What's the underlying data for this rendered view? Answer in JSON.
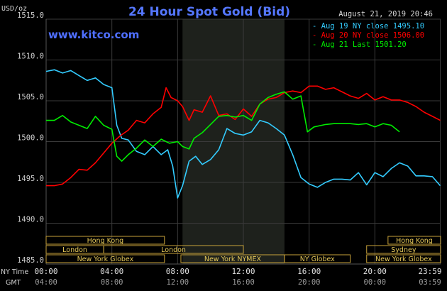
{
  "header": {
    "currency": "USD/oz",
    "title": "24 Hour Spot Gold (Bid)",
    "timestamp": "August 21, 2019 20:46",
    "watermark": "www.kitco.com"
  },
  "legend": [
    {
      "label": "Aug 19 NY close 1495.10",
      "color": "#33ccff"
    },
    {
      "label": "Aug 20 NY close 1506.00",
      "color": "#ff0000"
    },
    {
      "label": "Aug 21 Last 1501.20",
      "color": "#00ee00"
    }
  ],
  "sessions": [
    {
      "label": "Hong Kong",
      "row": 0,
      "start": 0,
      "end": 7.2
    },
    {
      "label": "Hong Kong",
      "row": 0,
      "start": 20.8,
      "end": 24
    },
    {
      "label": "London",
      "row": 1,
      "start": 0,
      "end": 3.5
    },
    {
      "label": "London",
      "row": 1,
      "start": 3.5,
      "end": 12
    },
    {
      "label": "Sydney",
      "row": 1,
      "start": 19.5,
      "end": 24
    },
    {
      "label": "New York Globex",
      "row": 2,
      "start": 0,
      "end": 7.2
    },
    {
      "label": "New York NYMEX",
      "row": 2,
      "start": 8.2,
      "end": 14.5
    },
    {
      "label": "NY Globex",
      "row": 2,
      "start": 14.5,
      "end": 18.5
    },
    {
      "label": "New York Globex",
      "row": 2,
      "start": 19.5,
      "end": 24
    }
  ],
  "axis_labels": {
    "ny_time": "NY Time",
    "gmt": "GMT"
  },
  "chart_data": {
    "type": "line",
    "title": "24 Hour Spot Gold (Bid)",
    "ylabel": "USD/oz",
    "xlim": [
      0,
      24
    ],
    "ylim": [
      1485,
      1515
    ],
    "y_ticks": [
      "1515.0",
      "1510.0",
      "1505.0",
      "1500.0",
      "1495.0",
      "1490.0",
      "1485.0"
    ],
    "y_tick_values": [
      1515,
      1510,
      1505,
      1500,
      1495,
      1490,
      1485
    ],
    "x_ticks_ny": [
      "00:00",
      "04:00",
      "08:00",
      "12:00",
      "16:00",
      "20:00",
      "23:59"
    ],
    "x_ticks_gmt": [
      "04:00",
      "08:00",
      "12:00",
      "16:00",
      "20:00",
      "00:00",
      "03:59"
    ],
    "x_tick_hours": [
      0,
      4,
      8,
      12,
      16,
      20,
      23.98
    ],
    "shaded_range": [
      8.3,
      14.5
    ],
    "series": [
      {
        "name": "Aug 19 NY close 1495.10",
        "color": "#33ccff",
        "points": [
          [
            0,
            1508.6
          ],
          [
            0.5,
            1508.8
          ],
          [
            1,
            1508.4
          ],
          [
            1.5,
            1508.7
          ],
          [
            2,
            1508.1
          ],
          [
            2.5,
            1507.5
          ],
          [
            3,
            1507.8
          ],
          [
            3.5,
            1507.0
          ],
          [
            4,
            1506.6
          ],
          [
            4.3,
            1502.0
          ],
          [
            4.6,
            1500.4
          ],
          [
            5,
            1500.2
          ],
          [
            5.5,
            1498.8
          ],
          [
            6,
            1498.4
          ],
          [
            6.5,
            1499.4
          ],
          [
            7,
            1498.4
          ],
          [
            7.4,
            1499.0
          ],
          [
            7.7,
            1497.0
          ],
          [
            8,
            1493.1
          ],
          [
            8.3,
            1494.6
          ],
          [
            8.7,
            1497.6
          ],
          [
            9.1,
            1498.2
          ],
          [
            9.5,
            1497.2
          ],
          [
            10,
            1497.8
          ],
          [
            10.5,
            1499.0
          ],
          [
            11,
            1501.6
          ],
          [
            11.5,
            1501.0
          ],
          [
            12,
            1500.8
          ],
          [
            12.5,
            1501.2
          ],
          [
            13,
            1502.6
          ],
          [
            13.5,
            1502.3
          ],
          [
            14,
            1501.6
          ],
          [
            14.5,
            1500.8
          ],
          [
            15,
            1498.4
          ],
          [
            15.5,
            1495.6
          ],
          [
            16,
            1494.8
          ],
          [
            16.5,
            1494.4
          ],
          [
            17,
            1495.0
          ],
          [
            17.5,
            1495.4
          ],
          [
            18,
            1495.4
          ],
          [
            18.5,
            1495.3
          ],
          [
            19,
            1496.2
          ],
          [
            19.5,
            1494.7
          ],
          [
            20,
            1496.2
          ],
          [
            20.5,
            1495.7
          ],
          [
            21,
            1496.7
          ],
          [
            21.5,
            1497.4
          ],
          [
            22,
            1497.0
          ],
          [
            22.5,
            1495.8
          ],
          [
            23,
            1495.8
          ],
          [
            23.5,
            1495.7
          ],
          [
            23.98,
            1494.6
          ]
        ]
      },
      {
        "name": "Aug 20 NY close 1506.00",
        "color": "#ff0000",
        "points": [
          [
            0,
            1494.6
          ],
          [
            0.5,
            1494.6
          ],
          [
            1,
            1494.8
          ],
          [
            1.5,
            1495.6
          ],
          [
            2,
            1496.6
          ],
          [
            2.5,
            1496.5
          ],
          [
            3,
            1497.4
          ],
          [
            3.5,
            1498.6
          ],
          [
            4,
            1499.8
          ],
          [
            4.5,
            1500.7
          ],
          [
            5,
            1501.4
          ],
          [
            5.5,
            1502.6
          ],
          [
            6,
            1502.3
          ],
          [
            6.5,
            1503.4
          ],
          [
            7,
            1504.2
          ],
          [
            7.3,
            1506.6
          ],
          [
            7.6,
            1505.4
          ],
          [
            8,
            1505.0
          ],
          [
            8.3,
            1504.3
          ],
          [
            8.7,
            1502.6
          ],
          [
            9,
            1503.9
          ],
          [
            9.5,
            1503.6
          ],
          [
            10,
            1505.6
          ],
          [
            10.5,
            1503.2
          ],
          [
            11,
            1503.4
          ],
          [
            11.5,
            1502.7
          ],
          [
            12,
            1504.0
          ],
          [
            12.5,
            1503.1
          ],
          [
            13,
            1504.6
          ],
          [
            13.5,
            1505.2
          ],
          [
            14,
            1505.4
          ],
          [
            14.5,
            1506.0
          ],
          [
            15,
            1506.2
          ],
          [
            15.5,
            1506.0
          ],
          [
            16,
            1506.8
          ],
          [
            16.5,
            1506.8
          ],
          [
            17,
            1506.4
          ],
          [
            17.5,
            1506.6
          ],
          [
            18,
            1506.1
          ],
          [
            18.5,
            1505.6
          ],
          [
            19,
            1505.3
          ],
          [
            19.5,
            1505.9
          ],
          [
            20,
            1505.1
          ],
          [
            20.5,
            1505.5
          ],
          [
            21,
            1505.1
          ],
          [
            21.5,
            1505.1
          ],
          [
            22,
            1504.8
          ],
          [
            22.5,
            1504.3
          ],
          [
            23,
            1503.6
          ],
          [
            23.5,
            1503.1
          ],
          [
            23.98,
            1502.6
          ]
        ]
      },
      {
        "name": "Aug 21 Last 1501.20",
        "color": "#00ee00",
        "points": [
          [
            0,
            1502.6
          ],
          [
            0.5,
            1502.6
          ],
          [
            1,
            1503.2
          ],
          [
            1.5,
            1502.4
          ],
          [
            2,
            1502.0
          ],
          [
            2.5,
            1501.6
          ],
          [
            3,
            1503.1
          ],
          [
            3.5,
            1502.0
          ],
          [
            4,
            1501.5
          ],
          [
            4.3,
            1498.2
          ],
          [
            4.6,
            1497.6
          ],
          [
            5,
            1498.4
          ],
          [
            5.5,
            1499.2
          ],
          [
            6,
            1500.2
          ],
          [
            6.5,
            1499.4
          ],
          [
            7,
            1500.3
          ],
          [
            7.5,
            1499.8
          ],
          [
            8,
            1500.0
          ],
          [
            8.3,
            1499.4
          ],
          [
            8.7,
            1499.1
          ],
          [
            9,
            1500.4
          ],
          [
            9.5,
            1501.1
          ],
          [
            10,
            1502.1
          ],
          [
            10.5,
            1503.1
          ],
          [
            11,
            1503.2
          ],
          [
            11.5,
            1503.0
          ],
          [
            12,
            1503.2
          ],
          [
            12.5,
            1502.6
          ],
          [
            13,
            1504.6
          ],
          [
            13.5,
            1505.4
          ],
          [
            14,
            1505.8
          ],
          [
            14.5,
            1506.1
          ],
          [
            15,
            1505.2
          ],
          [
            15.5,
            1505.6
          ],
          [
            15.9,
            1501.2
          ],
          [
            16.3,
            1501.8
          ],
          [
            17,
            1502.1
          ],
          [
            17.5,
            1502.2
          ],
          [
            18,
            1502.2
          ],
          [
            18.5,
            1502.2
          ],
          [
            19,
            1502.1
          ],
          [
            19.5,
            1502.2
          ],
          [
            20,
            1501.8
          ],
          [
            20.5,
            1502.2
          ],
          [
            21,
            1502.0
          ],
          [
            21.5,
            1501.2
          ]
        ]
      }
    ]
  }
}
